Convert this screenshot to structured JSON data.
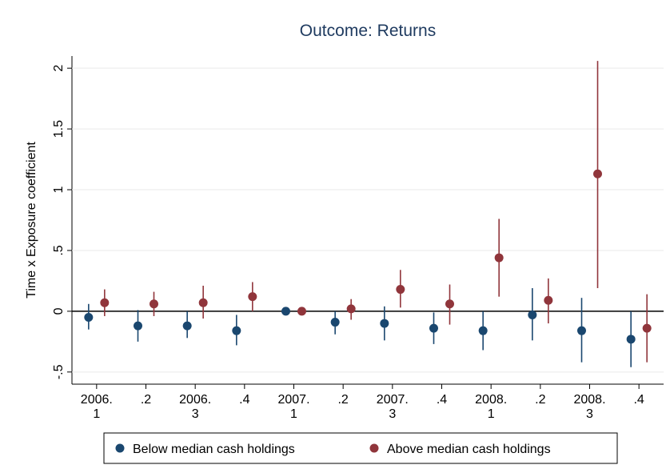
{
  "chart_data": {
    "type": "coefplot",
    "title": "Outcome: Returns",
    "y_label": "Time x Exposure coefficient",
    "categories": [
      [
        "2006.",
        "1"
      ],
      [
        ".2"
      ],
      [
        "2006.",
        "3"
      ],
      [
        ".4"
      ],
      [
        "2007.",
        "1"
      ],
      [
        ".2"
      ],
      [
        "2007.",
        "3"
      ],
      [
        ".4"
      ],
      [
        "2008.",
        "1"
      ],
      [
        ".2"
      ],
      [
        "2008.",
        "3"
      ],
      [
        ".4"
      ]
    ],
    "series": [
      {
        "name": "Below median cash holdings",
        "color": "#1a476f",
        "values": [
          -0.05,
          -0.12,
          -0.12,
          -0.16,
          0,
          -0.09,
          -0.1,
          -0.14,
          -0.16,
          -0.03,
          -0.16,
          -0.23
        ],
        "ci_low": [
          -0.15,
          -0.25,
          -0.22,
          -0.28,
          0,
          -0.19,
          -0.24,
          -0.27,
          -0.32,
          -0.24,
          -0.42,
          -0.46
        ],
        "ci_high": [
          0.06,
          0.01,
          0.0,
          -0.03,
          0,
          0.0,
          0.04,
          -0.01,
          0.0,
          0.19,
          0.11,
          0.0
        ]
      },
      {
        "name": "Above median cash holdings",
        "color": "#90353b",
        "values": [
          0.07,
          0.06,
          0.07,
          0.12,
          0,
          0.02,
          0.18,
          0.06,
          0.44,
          0.09,
          1.13,
          -0.14
        ],
        "ci_low": [
          -0.04,
          -0.04,
          -0.06,
          0.0,
          0,
          -0.07,
          0.03,
          -0.11,
          0.12,
          -0.1,
          0.19,
          -0.42
        ],
        "ci_high": [
          0.18,
          0.16,
          0.21,
          0.24,
          0,
          0.1,
          0.34,
          0.22,
          0.76,
          0.27,
          2.06,
          0.14
        ]
      }
    ],
    "ylim": [
      -0.6,
      2.1
    ],
    "yticks": [
      {
        "value": -0.5,
        "label": "-.5"
      },
      0,
      {
        "value": 0.5,
        "label": ".5"
      },
      1,
      1.5,
      2
    ],
    "grid": true
  }
}
